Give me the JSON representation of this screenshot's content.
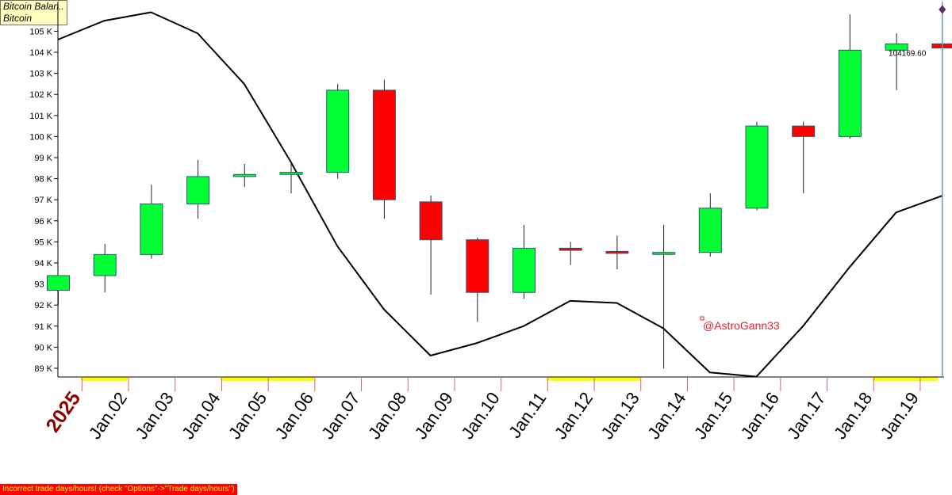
{
  "legend": {
    "line1": "Bitcoin Balan..",
    "line2": "Bitcoin"
  },
  "watermark": "@AstroGann33",
  "warning": "Incorrect trade days/hours! (check \"Options\"->\"Trade days/hours\")",
  "colors": {
    "up": "#00ff33",
    "down": "#ff0000",
    "line": "#000000",
    "weekend_band": "#ffff00",
    "cursor": "#5b9bc8",
    "year_label": "#8b0000",
    "watermark": "#e8202a",
    "tick_mark": "#e06060"
  },
  "chart_data": {
    "type": "candlestick",
    "title": "Bitcoin",
    "ylim": [
      88.6,
      105.8
    ],
    "y_ticks": [
      "89 K",
      "90 K",
      "91 K",
      "92 K",
      "93 K",
      "94 K",
      "95 K",
      "96 K",
      "97 K",
      "98 K",
      "99 K",
      "100 K",
      "101 K",
      "102 K",
      "103 K",
      "104 K",
      "105 K"
    ],
    "y_tick_values": [
      89,
      90,
      91,
      92,
      93,
      94,
      95,
      96,
      97,
      98,
      99,
      100,
      101,
      102,
      103,
      104,
      105
    ],
    "x_labels": [
      "2025",
      "Jan.02",
      "Jan.03",
      "Jan.04",
      "Jan.05",
      "Jan.06",
      "Jan.07",
      "Jan.08",
      "Jan.09",
      "Jan.10",
      "Jan.11",
      "Jan.12",
      "Jan.13",
      "Jan.14",
      "Jan.15",
      "Jan.16",
      "Jan.17",
      "Jan.18",
      "Jan.19"
    ],
    "x_label_styles": [
      "year",
      "date",
      "date",
      "date",
      "date",
      "date",
      "date",
      "date",
      "date",
      "date",
      "date",
      "date",
      "date",
      "date",
      "date",
      "date",
      "date",
      "date",
      "date"
    ],
    "candles": [
      {
        "open": 92.7,
        "high": 93.4,
        "low": 92.0,
        "close": 93.4,
        "dir": "up"
      },
      {
        "open": 93.4,
        "high": 94.9,
        "low": 92.6,
        "close": 94.4,
        "dir": "up"
      },
      {
        "open": 94.4,
        "high": 97.7,
        "low": 94.2,
        "close": 96.8,
        "dir": "up"
      },
      {
        "open": 96.8,
        "high": 98.9,
        "low": 96.1,
        "close": 98.1,
        "dir": "up"
      },
      {
        "open": 98.1,
        "high": 98.7,
        "low": 97.6,
        "close": 98.2,
        "dir": "up"
      },
      {
        "open": 98.2,
        "high": 98.8,
        "low": 97.3,
        "close": 98.3,
        "dir": "up"
      },
      {
        "open": 98.3,
        "high": 102.5,
        "low": 98.0,
        "close": 102.2,
        "dir": "up"
      },
      {
        "open": 102.2,
        "high": 102.7,
        "low": 96.1,
        "close": 97.0,
        "dir": "down"
      },
      {
        "open": 96.9,
        "high": 97.2,
        "low": 92.5,
        "close": 95.1,
        "dir": "down"
      },
      {
        "open": 95.1,
        "high": 95.2,
        "low": 91.2,
        "close": 92.6,
        "dir": "down"
      },
      {
        "open": 92.6,
        "high": 95.8,
        "low": 92.3,
        "close": 94.7,
        "dir": "up"
      },
      {
        "open": 94.7,
        "high": 95.0,
        "low": 93.9,
        "close": 94.6,
        "dir": "down"
      },
      {
        "open": 94.55,
        "high": 95.3,
        "low": 93.7,
        "close": 94.5,
        "dir": "down"
      },
      {
        "open": 94.5,
        "high": 95.8,
        "low": 89.0,
        "close": 94.5,
        "dir": "up"
      },
      {
        "open": 94.5,
        "high": 97.3,
        "low": 94.3,
        "close": 96.6,
        "dir": "up"
      },
      {
        "open": 96.6,
        "high": 100.7,
        "low": 96.5,
        "close": 100.5,
        "dir": "up"
      },
      {
        "open": 100.5,
        "high": 100.7,
        "low": 97.3,
        "close": 100.0,
        "dir": "down"
      },
      {
        "open": 100.0,
        "high": 105.8,
        "low": 99.9,
        "close": 104.1,
        "dir": "up"
      },
      {
        "open": 104.1,
        "high": 104.9,
        "low": 102.2,
        "close": 104.4,
        "dir": "up"
      },
      {
        "open": 104.4,
        "high": 104.4,
        "low": 104.2,
        "close": 104.2,
        "dir": "down"
      }
    ],
    "line_series": {
      "name": "Bitcoin Balan..",
      "x_index": [
        0,
        1,
        2,
        3,
        4,
        5,
        6,
        7,
        8,
        9,
        10,
        11,
        12,
        13,
        14,
        15,
        16,
        17,
        18,
        19
      ],
      "y": [
        104.6,
        105.5,
        105.9,
        104.9,
        102.5,
        98.8,
        94.8,
        91.8,
        89.6,
        90.2,
        91.0,
        92.2,
        92.1,
        90.9,
        88.8,
        88.6,
        91.0,
        93.8,
        96.4,
        97.2
      ]
    },
    "last_price_label": "104169.60",
    "weekend_bands": [
      [
        1,
        2
      ],
      [
        4,
        6
      ],
      [
        11,
        13
      ],
      [
        18,
        19.4
      ]
    ],
    "cursor_index": 19
  }
}
